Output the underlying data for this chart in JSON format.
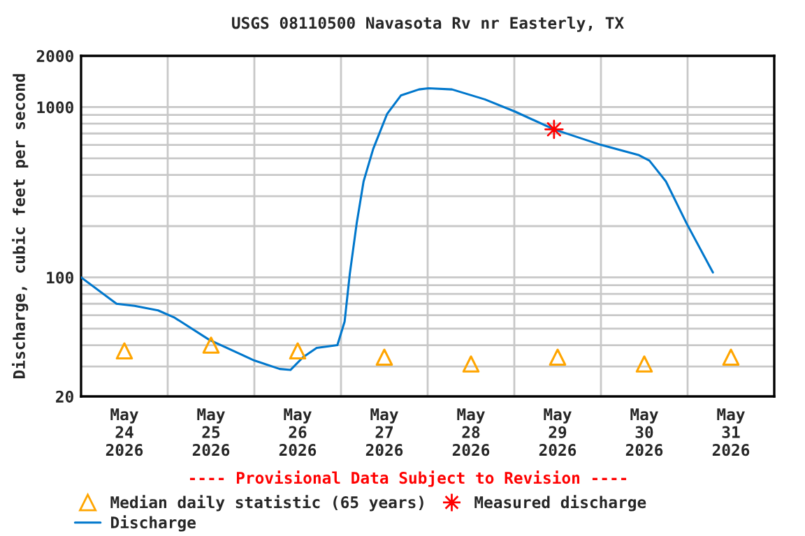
{
  "chart_data": {
    "type": "line",
    "title": "USGS 08110500 Navasota Rv nr Easterly, TX",
    "ylabel": "Discharge, cubic feet per second",
    "annotations": [
      "---- Provisional Data Subject to Revision ----"
    ],
    "log": "y",
    "grid": true,
    "legend": "bottom",
    "xlim": [
      "2026-05-24",
      "2026-06-01"
    ],
    "xticks": [
      {
        "value": "2026-05-24T12:00",
        "label": "May\n24\n2026"
      },
      {
        "value": "2026-05-25T12:00",
        "label": "May\n25\n2026"
      },
      {
        "value": "2026-05-26T12:00",
        "label": "May\n26\n2026"
      },
      {
        "value": "2026-05-27T12:00",
        "label": "May\n27\n2026"
      },
      {
        "value": "2026-05-28T12:00",
        "label": "May\n28\n2026"
      },
      {
        "value": "2026-05-29T12:00",
        "label": "May\n29\n2026"
      },
      {
        "value": "2026-05-30T12:00",
        "label": "May\n30\n2026"
      },
      {
        "value": "2026-05-31T12:00",
        "label": "May\n31\n2026"
      },
      {
        "value": "2026-05-25",
        "label": null
      },
      {
        "value": "2026-05-26",
        "label": null
      },
      {
        "value": "2026-05-27",
        "label": null
      },
      {
        "value": "2026-05-28",
        "label": null
      },
      {
        "value": "2026-05-29",
        "label": null
      },
      {
        "value": "2026-05-30",
        "label": null
      },
      {
        "value": "2026-05-31",
        "label": null
      }
    ],
    "ylim": [
      20,
      2000
    ],
    "yticks": [
      20,
      {
        "value": 30,
        "label": null
      },
      {
        "value": 40,
        "label": null
      },
      {
        "value": 50,
        "label": null
      },
      {
        "value": 60,
        "label": null
      },
      {
        "value": 70,
        "label": null
      },
      {
        "value": 80,
        "label": null
      },
      {
        "value": 90,
        "label": null
      },
      100,
      {
        "value": 200,
        "label": null
      },
      {
        "value": 300,
        "label": null
      },
      {
        "value": 400,
        "label": null
      },
      {
        "value": 500,
        "label": null
      },
      {
        "value": 600,
        "label": null
      },
      {
        "value": 700,
        "label": null
      },
      {
        "value": 800,
        "label": null
      },
      {
        "value": 900,
        "label": null
      },
      1000,
      2000
    ],
    "series": [
      {
        "name": "Median daily statistic (65 years)",
        "type": "scatter",
        "marker": "triangle",
        "color": "#ffa500",
        "x": [
          "2026-05-24T12:00",
          "2026-05-25T12:00",
          "2026-05-26T12:00",
          "2026-05-27T12:00",
          "2026-05-28T12:00",
          "2026-05-29T12:00",
          "2026-05-30T12:00",
          "2026-05-31T12:00"
        ],
        "values": [
          37,
          40,
          37,
          34,
          31,
          34,
          31,
          34
        ]
      },
      {
        "name": "Discharge",
        "color": "#0077cc",
        "x": [
          "2026-05-24T00:00",
          "2026-05-24T09:50",
          "2026-05-24T14:50",
          "2026-05-24T21:20",
          "2026-05-25T01:55",
          "2026-05-25T11:30",
          "2026-05-26T00:00",
          "2026-05-26T07:00",
          "2026-05-26T10:00",
          "2026-05-26T13:30",
          "2026-05-26T17:15",
          "2026-05-26T23:00",
          "2026-05-27T01:00",
          "2026-05-27T02:25",
          "2026-05-27T04:20",
          "2026-05-27T06:15",
          "2026-05-27T08:55",
          "2026-05-27T12:45",
          "2026-05-27T16:35",
          "2026-05-27T21:35",
          "2026-05-28T00:15",
          "2026-05-28T06:45",
          "2026-05-28T15:50",
          "2026-05-29T00:15",
          "2026-05-29T11:00",
          "2026-05-30T00:00",
          "2026-05-30T10:20",
          "2026-05-30T13:25",
          "2026-05-30T18:00",
          "2026-05-30T23:45",
          "2026-05-31T07:00"
        ],
        "values": [
          100,
          70,
          68,
          64,
          58,
          43,
          32.5,
          29,
          28.6,
          34,
          38.5,
          40,
          55,
          104,
          207,
          366,
          568,
          910,
          1170,
          1270,
          1290,
          1270,
          1110,
          940,
          740,
          600,
          524,
          485,
          366,
          207,
          107
        ]
      },
      {
        "name": "Measured discharge",
        "type": "scatter",
        "marker": "star",
        "color": "#ff0000",
        "x": [
          "2026-05-29T11:00"
        ],
        "values": [
          740
        ]
      }
    ]
  }
}
